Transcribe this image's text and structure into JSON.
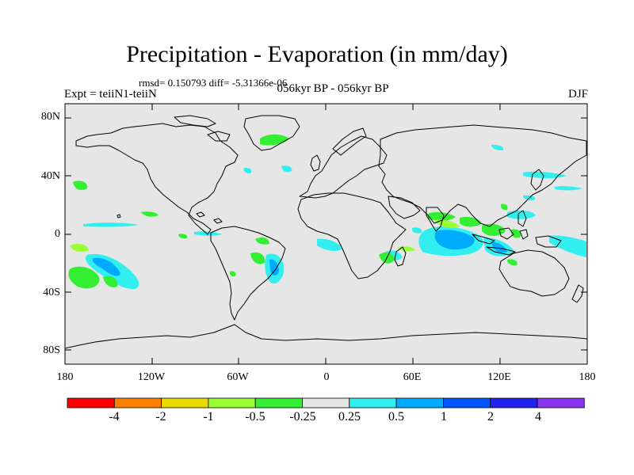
{
  "title": "Precipitation - Evaporation (in mm/day)",
  "stats": "rmsd= 0.150793 diff= -5.31366e-06",
  "left_label": "Expt = teiiN1-teiiN",
  "center_label": "056kyr BP - 056kyr BP",
  "right_label": "DJF",
  "lat_ticks": [
    "80N",
    "40N",
    "0",
    "40S",
    "80S"
  ],
  "lon_ticks": [
    "180",
    "120W",
    "60W",
    "0",
    "60E",
    "120E",
    "180"
  ],
  "colorbar": {
    "colors": [
      "#ff0000",
      "#ff8000",
      "#e6dc00",
      "#99ff33",
      "#33ee33",
      "#e6e6e6",
      "#33eeee",
      "#00aaff",
      "#0055ff",
      "#2222ee",
      "#8833ee"
    ],
    "labels": [
      "-4",
      "-2",
      "-1",
      "-0.5",
      "-0.25",
      "0.25",
      "0.5",
      "1",
      "2",
      "4"
    ]
  },
  "map": {
    "land_outline_color": "#000000",
    "background_color": "#e6e6e6"
  }
}
